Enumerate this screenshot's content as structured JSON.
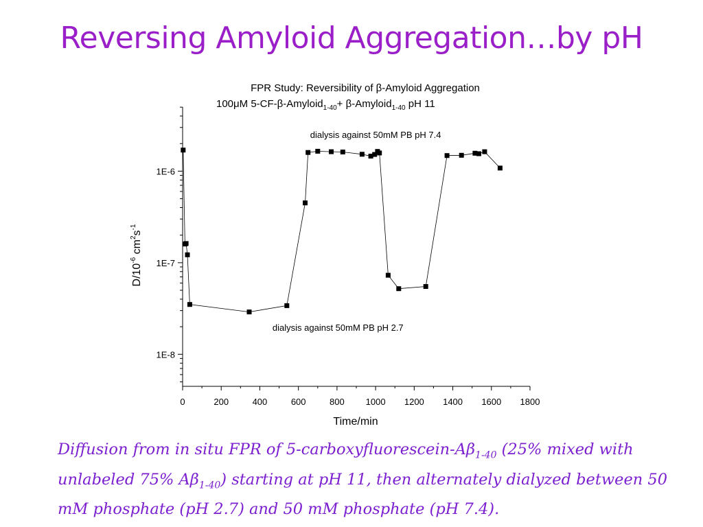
{
  "slide": {
    "title": "Reversing Amyloid Aggregation…by pH",
    "caption": {
      "p1": "Diffusion from in situ FPR of 5-carboxyfluorescein-A",
      "beta": "β",
      "sub": "1-40",
      "p2": " (25% mixed with unlabeled 75% A",
      "p3": ") starting at pH 11, then alternately dialyzed between 50 mM phosphate (pH 2.7) and 50 mM phosphate (pH 7.4)."
    }
  },
  "chart_data": {
    "type": "scatter",
    "title_line1": "FPR Study: Reversibility of β-Amyloid Aggregation",
    "title_line2": {
      "a": "100μM 5-CF-β-Amyloid",
      "sub1": "1-40",
      "b": "+ β-Amyloid",
      "sub2": "1-40",
      "c": " pH 11"
    },
    "xlabel": "Time/min",
    "ylabel": {
      "a": "D/10",
      "sup1": "-6",
      "b": " cm",
      "sup2": "2",
      "c": "s",
      "sup3": "-1"
    },
    "xlim": [
      0,
      1800
    ],
    "ylim_log10": [
      -8.35,
      -5.3
    ],
    "yscale": "log",
    "x_ticks": [
      0,
      200,
      400,
      600,
      800,
      1000,
      1200,
      1400,
      1600,
      1800
    ],
    "y_ticks": [
      {
        "value": 1e-08,
        "label": "1E-8"
      },
      {
        "value": 1e-07,
        "label": "1E-7"
      },
      {
        "value": 1e-06,
        "label": "1E-6"
      }
    ],
    "annotations": [
      {
        "text": "dialysis against 50mM PB pH 7.4",
        "x": 1000,
        "y": 2.3e-06
      },
      {
        "text": "dialysis against 50mM PB pH 2.7",
        "x": 805,
        "y": 1.8e-08
      }
    ],
    "series": [
      {
        "marker": "square",
        "color": "#000000",
        "points": [
          [
            3,
            1.7e-06
          ],
          [
            12,
            1.6e-07
          ],
          [
            18,
            1.62e-07
          ],
          [
            25,
            1.22e-07
          ],
          [
            37,
            3.5e-08
          ],
          [
            345,
            2.9e-08
          ],
          [
            540,
            3.4e-08
          ],
          [
            635,
            4.5e-07
          ],
          [
            650,
            1.6e-06
          ],
          [
            700,
            1.65e-06
          ],
          [
            770,
            1.63e-06
          ],
          [
            830,
            1.62e-06
          ],
          [
            930,
            1.53e-06
          ],
          [
            975,
            1.46e-06
          ],
          [
            995,
            1.52e-06
          ],
          [
            1010,
            1.64e-06
          ],
          [
            1020,
            1.58e-06
          ],
          [
            1065,
            7.3e-08
          ],
          [
            1120,
            5.2e-08
          ],
          [
            1260,
            5.5e-08
          ],
          [
            1370,
            1.48e-06
          ],
          [
            1445,
            1.49e-06
          ],
          [
            1515,
            1.57e-06
          ],
          [
            1535,
            1.55e-06
          ],
          [
            1565,
            1.63e-06
          ],
          [
            1645,
            1.08e-06
          ]
        ]
      }
    ]
  }
}
